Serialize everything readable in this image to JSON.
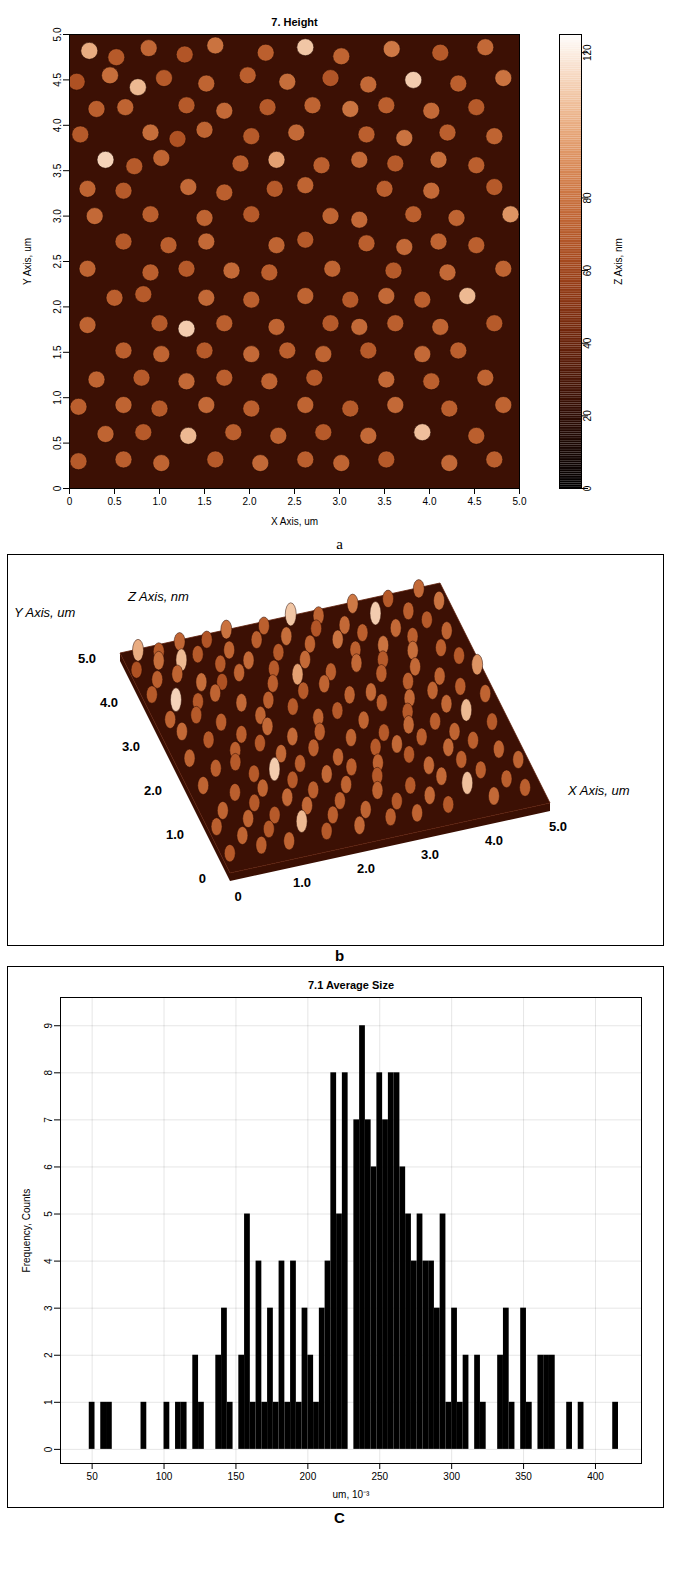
{
  "chart_data": [
    {
      "type": "height_map",
      "panel_label": "a",
      "title": "7. Height",
      "x_label": "X Axis, um",
      "y_label": "Y Axis, um",
      "xlim": [
        0,
        5
      ],
      "ylim": [
        0,
        5
      ],
      "xticks": [
        0,
        0.5,
        {
          "value": 1,
          "label": "1.0"
        },
        1.5,
        {
          "value": 2,
          "label": "2.0"
        },
        2.5,
        {
          "value": 3,
          "label": "3.0"
        },
        3.5,
        {
          "value": 4,
          "label": "4.0"
        },
        4.5,
        {
          "value": 5,
          "label": "5.0"
        }
      ],
      "yticks": [
        0,
        0.5,
        {
          "value": 1,
          "label": "1.0"
        },
        1.5,
        {
          "value": 2,
          "label": "2.0"
        },
        2.5,
        {
          "value": 3,
          "label": "3.0"
        },
        3.5,
        {
          "value": 4,
          "label": "4.0"
        },
        4.5,
        {
          "value": 5,
          "label": "5.0"
        }
      ],
      "background_height": 25,
      "grains": [
        [
          0.22,
          4.82,
          100
        ],
        [
          0.52,
          4.75,
          70
        ],
        [
          0.88,
          4.85,
          75
        ],
        [
          1.28,
          4.78,
          68
        ],
        [
          1.62,
          4.88,
          80
        ],
        [
          2.18,
          4.8,
          72
        ],
        [
          2.62,
          4.86,
          108
        ],
        [
          3.02,
          4.76,
          74
        ],
        [
          3.58,
          4.84,
          82
        ],
        [
          4.12,
          4.8,
          70
        ],
        [
          4.62,
          4.86,
          76
        ],
        [
          0.08,
          4.48,
          66
        ],
        [
          0.45,
          4.55,
          78
        ],
        [
          0.76,
          4.42,
          104
        ],
        [
          1.05,
          4.52,
          70
        ],
        [
          1.52,
          4.46,
          74
        ],
        [
          1.98,
          4.55,
          72
        ],
        [
          2.42,
          4.48,
          78
        ],
        [
          2.9,
          4.52,
          68
        ],
        [
          3.32,
          4.45,
          76
        ],
        [
          3.82,
          4.5,
          110
        ],
        [
          4.32,
          4.46,
          72
        ],
        [
          4.82,
          4.52,
          80
        ],
        [
          0.3,
          4.18,
          72
        ],
        [
          0.62,
          4.2,
          74
        ],
        [
          1.3,
          4.22,
          70
        ],
        [
          1.72,
          4.16,
          76
        ],
        [
          2.2,
          4.2,
          70
        ],
        [
          2.7,
          4.22,
          74
        ],
        [
          3.12,
          4.18,
          80
        ],
        [
          3.52,
          4.22,
          72
        ],
        [
          4.02,
          4.16,
          76
        ],
        [
          4.52,
          4.2,
          70
        ],
        [
          0.12,
          3.9,
          70
        ],
        [
          0.9,
          3.92,
          78
        ],
        [
          1.2,
          3.85,
          66
        ],
        [
          1.5,
          3.95,
          74
        ],
        [
          2.02,
          3.88,
          70
        ],
        [
          2.52,
          3.92,
          76
        ],
        [
          3.3,
          3.9,
          72
        ],
        [
          3.72,
          3.86,
          80
        ],
        [
          4.2,
          3.92,
          72
        ],
        [
          4.72,
          3.88,
          74
        ],
        [
          0.4,
          3.62,
          112
        ],
        [
          0.72,
          3.55,
          70
        ],
        [
          1.02,
          3.64,
          74
        ],
        [
          1.9,
          3.58,
          72
        ],
        [
          2.3,
          3.62,
          96
        ],
        [
          2.8,
          3.56,
          72
        ],
        [
          3.22,
          3.62,
          76
        ],
        [
          3.62,
          3.58,
          70
        ],
        [
          4.1,
          3.62,
          78
        ],
        [
          4.52,
          3.56,
          72
        ],
        [
          0.2,
          3.3,
          74
        ],
        [
          0.6,
          3.28,
          70
        ],
        [
          1.32,
          3.32,
          76
        ],
        [
          1.72,
          3.26,
          72
        ],
        [
          2.28,
          3.3,
          70
        ],
        [
          2.62,
          3.34,
          74
        ],
        [
          3.5,
          3.3,
          72
        ],
        [
          4.02,
          3.28,
          76
        ],
        [
          4.72,
          3.32,
          70
        ],
        [
          0.28,
          3.0,
          76
        ],
        [
          0.9,
          3.02,
          72
        ],
        [
          1.5,
          2.98,
          74
        ],
        [
          2.02,
          3.02,
          70
        ],
        [
          2.9,
          3.0,
          74
        ],
        [
          3.22,
          2.96,
          76
        ],
        [
          3.82,
          3.02,
          72
        ],
        [
          4.3,
          2.98,
          74
        ],
        [
          4.9,
          3.02,
          92
        ],
        [
          0.6,
          2.72,
          70
        ],
        [
          1.1,
          2.68,
          72
        ],
        [
          1.52,
          2.72,
          76
        ],
        [
          2.3,
          2.68,
          74
        ],
        [
          2.62,
          2.74,
          70
        ],
        [
          3.3,
          2.7,
          72
        ],
        [
          3.72,
          2.66,
          76
        ],
        [
          4.1,
          2.72,
          74
        ],
        [
          4.52,
          2.68,
          72
        ],
        [
          0.2,
          2.42,
          74
        ],
        [
          0.9,
          2.38,
          72
        ],
        [
          1.3,
          2.42,
          70
        ],
        [
          1.8,
          2.4,
          76
        ],
        [
          2.22,
          2.38,
          72
        ],
        [
          2.92,
          2.42,
          74
        ],
        [
          3.6,
          2.4,
          70
        ],
        [
          4.2,
          2.38,
          76
        ],
        [
          4.82,
          2.42,
          74
        ],
        [
          0.5,
          2.1,
          72
        ],
        [
          0.82,
          2.14,
          70
        ],
        [
          1.52,
          2.1,
          76
        ],
        [
          2.02,
          2.08,
          72
        ],
        [
          2.62,
          2.12,
          74
        ],
        [
          3.12,
          2.08,
          70
        ],
        [
          3.52,
          2.12,
          76
        ],
        [
          3.92,
          2.08,
          72
        ],
        [
          4.42,
          2.12,
          104
        ],
        [
          0.2,
          1.8,
          74
        ],
        [
          1.0,
          1.82,
          70
        ],
        [
          1.3,
          1.76,
          110
        ],
        [
          1.72,
          1.82,
          72
        ],
        [
          2.3,
          1.78,
          74
        ],
        [
          2.9,
          1.82,
          70
        ],
        [
          3.22,
          1.78,
          76
        ],
        [
          3.62,
          1.82,
          72
        ],
        [
          4.12,
          1.78,
          74
        ],
        [
          4.72,
          1.82,
          70
        ],
        [
          0.6,
          1.52,
          72
        ],
        [
          1.02,
          1.48,
          74
        ],
        [
          1.5,
          1.52,
          70
        ],
        [
          2.02,
          1.48,
          76
        ],
        [
          2.42,
          1.52,
          72
        ],
        [
          2.82,
          1.48,
          74
        ],
        [
          3.32,
          1.52,
          70
        ],
        [
          3.92,
          1.48,
          76
        ],
        [
          4.32,
          1.52,
          72
        ],
        [
          0.3,
          1.2,
          74
        ],
        [
          0.8,
          1.22,
          70
        ],
        [
          1.3,
          1.18,
          76
        ],
        [
          1.72,
          1.22,
          72
        ],
        [
          2.22,
          1.18,
          74
        ],
        [
          2.72,
          1.22,
          70
        ],
        [
          3.52,
          1.2,
          76
        ],
        [
          4.02,
          1.18,
          72
        ],
        [
          4.62,
          1.22,
          74
        ],
        [
          0.1,
          0.9,
          72
        ],
        [
          0.6,
          0.92,
          74
        ],
        [
          1.0,
          0.88,
          70
        ],
        [
          1.52,
          0.92,
          76
        ],
        [
          2.02,
          0.88,
          72
        ],
        [
          2.62,
          0.92,
          74
        ],
        [
          3.12,
          0.88,
          70
        ],
        [
          3.62,
          0.92,
          76
        ],
        [
          4.22,
          0.88,
          72
        ],
        [
          4.82,
          0.92,
          74
        ],
        [
          0.4,
          0.6,
          74
        ],
        [
          0.82,
          0.62,
          70
        ],
        [
          1.32,
          0.58,
          104
        ],
        [
          1.82,
          0.62,
          72
        ],
        [
          2.32,
          0.58,
          74
        ],
        [
          2.82,
          0.62,
          70
        ],
        [
          3.32,
          0.58,
          76
        ],
        [
          3.92,
          0.62,
          106
        ],
        [
          4.52,
          0.58,
          72
        ],
        [
          0.1,
          0.3,
          70
        ],
        [
          0.6,
          0.32,
          72
        ],
        [
          1.02,
          0.28,
          74
        ],
        [
          1.62,
          0.32,
          70
        ],
        [
          2.12,
          0.28,
          76
        ],
        [
          2.62,
          0.32,
          72
        ],
        [
          3.02,
          0.28,
          74
        ],
        [
          3.52,
          0.32,
          70
        ],
        [
          4.22,
          0.28,
          76
        ],
        [
          4.72,
          0.32,
          72
        ]
      ],
      "colorbar": {
        "range": [
          0,
          125
        ],
        "ticks": [
          0,
          20,
          40,
          60,
          80,
          120
        ],
        "label": "Z Axis, nm"
      }
    },
    {
      "type": "surface_3d",
      "panel_label": "b",
      "x_label": "X Axis, um",
      "y_label": "Y Axis, um",
      "z_label": "Z Axis, nm",
      "xlim": [
        0,
        5
      ],
      "ylim": [
        0,
        5
      ],
      "xticks": [
        0,
        {
          "value": 1,
          "label": "1.0"
        },
        {
          "value": 2,
          "label": "2.0"
        },
        {
          "value": 3,
          "label": "3.0"
        },
        {
          "value": 4,
          "label": "4.0"
        },
        {
          "value": 5,
          "label": "5.0"
        }
      ],
      "yticks": [
        0,
        {
          "value": 1,
          "label": "1.0"
        },
        {
          "value": 2,
          "label": "2.0"
        },
        {
          "value": 3,
          "label": "3.0"
        },
        {
          "value": 4,
          "label": "4.0"
        },
        {
          "value": 5,
          "label": "5.0"
        }
      ]
    },
    {
      "type": "histogram",
      "panel_label": "C",
      "title": "7.1 Average Size",
      "x_label": "um, 10⁻³",
      "y_label": "Frequency, Counts",
      "bins": [
        44,
        48,
        52,
        56,
        60,
        64,
        68,
        72,
        76,
        80,
        84,
        88,
        92,
        96,
        100,
        104,
        108,
        112,
        116,
        120,
        124,
        128,
        132,
        136,
        140,
        144,
        148,
        152,
        156,
        160,
        164,
        168,
        172,
        176,
        180,
        184,
        188,
        192,
        196,
        200,
        204,
        208,
        212,
        216,
        220,
        224,
        228,
        232,
        236,
        240,
        244,
        248,
        252,
        256,
        260,
        264,
        268,
        272,
        276,
        280,
        284,
        288,
        292,
        296,
        300,
        304,
        308,
        312,
        316,
        320,
        324,
        328,
        332,
        336,
        340,
        344,
        348,
        352,
        356,
        360,
        364,
        368,
        372,
        376,
        380,
        384,
        388,
        392,
        396,
        400,
        404,
        408,
        412,
        416,
        420,
        424
      ],
      "counts": [
        0,
        1,
        0,
        1,
        1,
        0,
        0,
        0,
        0,
        0,
        1,
        0,
        0,
        0,
        1,
        0,
        1,
        1,
        0,
        2,
        1,
        0,
        0,
        2,
        3,
        1,
        0,
        2,
        5,
        1,
        4,
        1,
        3,
        1,
        4,
        1,
        4,
        1,
        3,
        2,
        1,
        3,
        4,
        8,
        5,
        8,
        0,
        7,
        9,
        7,
        6,
        8,
        7,
        8,
        8,
        6,
        5,
        4,
        5,
        4,
        4,
        3,
        5,
        1,
        3,
        1,
        2,
        0,
        2,
        1,
        0,
        0,
        2,
        3,
        1,
        0,
        3,
        1,
        0,
        2,
        2,
        2,
        0,
        0,
        1,
        0,
        1,
        0,
        0,
        0,
        0,
        0,
        1,
        0,
        0
      ],
      "color": "#000000",
      "xlim": [
        28,
        432
      ],
      "ylim": [
        -0.3,
        9.6
      ],
      "xticks": [
        50,
        100,
        150,
        200,
        250,
        300,
        350,
        400
      ],
      "yticks": [
        0,
        1,
        2,
        3,
        4,
        5,
        6,
        7,
        8,
        9
      ],
      "grid": true
    }
  ]
}
